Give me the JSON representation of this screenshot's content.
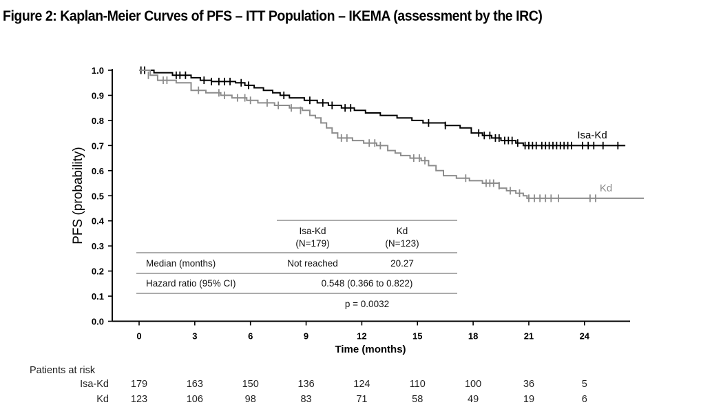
{
  "figure_title": "Figure 2: Kaplan-Meier Curves of PFS – ITT Population – IKEMA (assessment by the IRC)",
  "chart_data": {
    "type": "line",
    "title": "",
    "xlabel": "Time (months)",
    "ylabel": "PFS (probability)",
    "xlim": [
      0,
      27.2
    ],
    "ylim": [
      0.0,
      1.0
    ],
    "x_ticks": [
      "0",
      "3",
      "6",
      "9",
      "12",
      "15",
      "18",
      "21",
      "24"
    ],
    "y_ticks": [
      "0.0",
      "0.1",
      "0.2",
      "0.3",
      "0.4",
      "0.5",
      "0.6",
      "0.7",
      "0.8",
      "0.9",
      "1.0"
    ],
    "grid": false,
    "legend": "inline curve labels at right",
    "colors": {
      "isa_kd": "#000000",
      "kd": "#8c8c8c"
    },
    "series": [
      {
        "name": "Isa-Kd",
        "steps": [
          [
            0,
            1.0
          ],
          [
            0.8,
            0.99
          ],
          [
            1.8,
            0.98
          ],
          [
            2.8,
            0.97
          ],
          [
            3.3,
            0.96
          ],
          [
            3.9,
            0.955
          ],
          [
            5.2,
            0.95
          ],
          [
            5.7,
            0.94
          ],
          [
            6.2,
            0.93
          ],
          [
            6.7,
            0.92
          ],
          [
            7.2,
            0.91
          ],
          [
            7.6,
            0.9
          ],
          [
            8.1,
            0.89
          ],
          [
            8.9,
            0.88
          ],
          [
            9.6,
            0.87
          ],
          [
            10.2,
            0.86
          ],
          [
            10.9,
            0.85
          ],
          [
            11.6,
            0.84
          ],
          [
            12.2,
            0.83
          ],
          [
            13.0,
            0.82
          ],
          [
            13.9,
            0.81
          ],
          [
            14.7,
            0.8
          ],
          [
            15.3,
            0.79
          ],
          [
            16.5,
            0.78
          ],
          [
            17.3,
            0.77
          ],
          [
            17.9,
            0.75
          ],
          [
            18.5,
            0.74
          ],
          [
            19.0,
            0.73
          ],
          [
            19.5,
            0.72
          ],
          [
            20.3,
            0.71
          ],
          [
            20.7,
            0.7
          ],
          [
            26.2,
            0.7
          ]
        ],
        "censored": [
          [
            0.1,
            1.0
          ],
          [
            0.3,
            1.0
          ],
          [
            2.0,
            0.98
          ],
          [
            2.2,
            0.98
          ],
          [
            2.5,
            0.98
          ],
          [
            3.5,
            0.96
          ],
          [
            3.9,
            0.955
          ],
          [
            4.3,
            0.955
          ],
          [
            4.6,
            0.955
          ],
          [
            4.9,
            0.955
          ],
          [
            5.5,
            0.95
          ],
          [
            5.9,
            0.94
          ],
          [
            7.8,
            0.9
          ],
          [
            9.2,
            0.88
          ],
          [
            9.9,
            0.87
          ],
          [
            10.4,
            0.86
          ],
          [
            11.1,
            0.85
          ],
          [
            11.4,
            0.85
          ],
          [
            15.6,
            0.79
          ],
          [
            16.5,
            0.78
          ],
          [
            18.3,
            0.75
          ],
          [
            18.6,
            0.74
          ],
          [
            18.9,
            0.74
          ],
          [
            19.2,
            0.73
          ],
          [
            19.4,
            0.73
          ],
          [
            19.7,
            0.72
          ],
          [
            19.9,
            0.72
          ],
          [
            20.1,
            0.72
          ],
          [
            20.4,
            0.71
          ],
          [
            20.8,
            0.7
          ],
          [
            21.0,
            0.7
          ],
          [
            21.2,
            0.7
          ],
          [
            21.4,
            0.7
          ],
          [
            21.7,
            0.7
          ],
          [
            21.9,
            0.7
          ],
          [
            22.1,
            0.7
          ],
          [
            22.3,
            0.7
          ],
          [
            22.5,
            0.7
          ],
          [
            22.7,
            0.7
          ],
          [
            22.9,
            0.7
          ],
          [
            23.1,
            0.7
          ],
          [
            23.3,
            0.7
          ],
          [
            23.9,
            0.7
          ],
          [
            24.2,
            0.7
          ],
          [
            24.5,
            0.7
          ],
          [
            25.0,
            0.7
          ],
          [
            25.8,
            0.7
          ]
        ]
      },
      {
        "name": "Kd",
        "steps": [
          [
            0,
            1.0
          ],
          [
            0.6,
            0.98
          ],
          [
            1.0,
            0.96
          ],
          [
            2.0,
            0.95
          ],
          [
            2.8,
            0.92
          ],
          [
            3.6,
            0.91
          ],
          [
            4.4,
            0.9
          ],
          [
            5.0,
            0.89
          ],
          [
            5.8,
            0.88
          ],
          [
            6.4,
            0.87
          ],
          [
            7.3,
            0.86
          ],
          [
            8.1,
            0.85
          ],
          [
            8.8,
            0.84
          ],
          [
            9.2,
            0.82
          ],
          [
            9.5,
            0.81
          ],
          [
            9.8,
            0.79
          ],
          [
            10.1,
            0.77
          ],
          [
            10.4,
            0.75
          ],
          [
            10.7,
            0.73
          ],
          [
            11.5,
            0.72
          ],
          [
            12.1,
            0.71
          ],
          [
            12.8,
            0.7
          ],
          [
            13.4,
            0.68
          ],
          [
            13.8,
            0.67
          ],
          [
            14.1,
            0.66
          ],
          [
            14.6,
            0.65
          ],
          [
            15.2,
            0.64
          ],
          [
            15.6,
            0.62
          ],
          [
            16.0,
            0.6
          ],
          [
            16.4,
            0.58
          ],
          [
            17.1,
            0.57
          ],
          [
            17.8,
            0.56
          ],
          [
            18.5,
            0.55
          ],
          [
            19.4,
            0.53
          ],
          [
            19.8,
            0.52
          ],
          [
            20.3,
            0.51
          ],
          [
            20.7,
            0.5
          ],
          [
            20.9,
            0.49
          ],
          [
            27.2,
            0.49
          ]
        ],
        "censored": [
          [
            0.5,
            0.98
          ],
          [
            1.3,
            0.96
          ],
          [
            1.5,
            0.96
          ],
          [
            3.2,
            0.92
          ],
          [
            4.3,
            0.91
          ],
          [
            4.6,
            0.9
          ],
          [
            5.3,
            0.89
          ],
          [
            5.7,
            0.89
          ],
          [
            6.0,
            0.88
          ],
          [
            6.9,
            0.87
          ],
          [
            7.5,
            0.86
          ],
          [
            8.2,
            0.85
          ],
          [
            8.7,
            0.84
          ],
          [
            10.9,
            0.73
          ],
          [
            11.2,
            0.73
          ],
          [
            12.4,
            0.71
          ],
          [
            12.7,
            0.71
          ],
          [
            13.0,
            0.7
          ],
          [
            14.8,
            0.65
          ],
          [
            15.1,
            0.65
          ],
          [
            15.4,
            0.64
          ],
          [
            17.6,
            0.57
          ],
          [
            18.7,
            0.55
          ],
          [
            18.9,
            0.55
          ],
          [
            19.1,
            0.55
          ],
          [
            19.4,
            0.54
          ],
          [
            20.0,
            0.52
          ],
          [
            20.5,
            0.51
          ],
          [
            21.0,
            0.49
          ],
          [
            21.3,
            0.49
          ],
          [
            21.6,
            0.49
          ],
          [
            21.9,
            0.49
          ],
          [
            22.2,
            0.49
          ],
          [
            22.6,
            0.49
          ],
          [
            24.3,
            0.49
          ],
          [
            24.6,
            0.49
          ]
        ]
      }
    ],
    "curve_labels": {
      "isa_kd": "Isa-Kd",
      "kd": "Kd"
    },
    "summary_table": {
      "col_isa": "Isa-Kd",
      "col_isa_n": "(N=179)",
      "col_kd": "Kd",
      "col_kd_n": "(N=123)",
      "median_label": "Median (months)",
      "median_isa": "Not reached",
      "median_kd": "20.27",
      "hr_label": "Hazard ratio (95% CI)",
      "hr_value": "0.548 (0.366 to 0.822)",
      "p_value": "p = 0.0032"
    },
    "at_risk": {
      "heading": "Patients at risk",
      "rows": [
        {
          "label": "Isa-Kd",
          "values": [
            "179",
            "163",
            "150",
            "136",
            "124",
            "110",
            "100",
            "36",
            "5"
          ]
        },
        {
          "label": "Kd",
          "values": [
            "123",
            "106",
            "98",
            "83",
            "71",
            "58",
            "49",
            "19",
            "6"
          ]
        }
      ]
    }
  }
}
